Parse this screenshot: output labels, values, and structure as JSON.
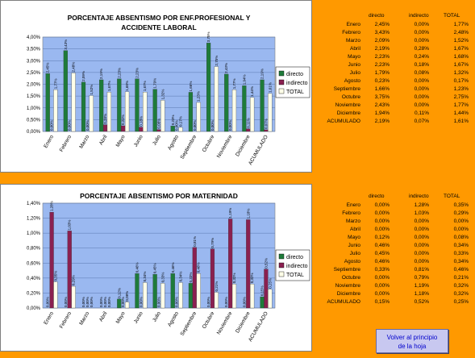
{
  "colors": {
    "directo": "#1e7b3a",
    "indirecto": "#8a2050",
    "total": "#ffffe8",
    "plot_bg": "#9ab8f0",
    "background": "#ff9900"
  },
  "chart_data": [
    {
      "type": "bar",
      "title": "PORCENTAJE ABSENTISMO POR ENF.PROFESIONAL Y ACCIDENTE LABORAL",
      "title_lines": [
        "PORCENTAJE ABSENTISMO POR ENF.PROFESIONAL Y",
        "ACCIDENTE LABORAL"
      ],
      "categories": [
        "Enero",
        "Febrero",
        "Marzo",
        "Abril",
        "Mayo",
        "Junio",
        "Julio",
        "Agosto",
        "Septiembre",
        "Octubre",
        "Noviembre",
        "Diciembre",
        "ACUMULADO"
      ],
      "series": [
        {
          "name": "directo",
          "values": [
            2.45,
            3.43,
            2.09,
            2.19,
            2.23,
            2.23,
            1.79,
            0.23,
            1.66,
            3.75,
            2.43,
            1.94,
            2.19
          ]
        },
        {
          "name": "indirecto",
          "values": [
            0.0,
            0.0,
            0.0,
            0.28,
            0.24,
            0.18,
            0.08,
            0.0,
            0.0,
            0.0,
            0.0,
            0.11,
            0.07
          ]
        },
        {
          "name": "TOTAL",
          "values": [
            1.77,
            2.48,
            1.52,
            1.67,
            1.68,
            1.67,
            1.32,
            0.17,
            1.23,
            2.75,
            1.77,
            1.44,
            1.61
          ]
        }
      ],
      "ylim": [
        0,
        4
      ],
      "yticks": [
        "0,00%",
        "0,50%",
        "1,00%",
        "1,50%",
        "2,00%",
        "2,50%",
        "3,00%",
        "3,50%",
        "4,00%"
      ],
      "legend_position": "right",
      "grid": true
    },
    {
      "type": "bar",
      "title": "PORCENTAJE ABSENTISMO POR MATERNIDAD",
      "title_lines": [
        "PORCENTAJE ABSENTISMO POR MATERNIDAD"
      ],
      "categories": [
        "Enero",
        "Febrero",
        "Marzo",
        "Abril",
        "Mayo",
        "Junio",
        "Julio",
        "Agosto",
        "Septiembre",
        "Octubre",
        "Noviembre",
        "Diciembre",
        "ACUMULADO"
      ],
      "series": [
        {
          "name": "directo",
          "values": [
            0.0,
            0.0,
            0.0,
            0.0,
            0.12,
            0.46,
            0.45,
            0.46,
            0.33,
            0.0,
            0.0,
            0.0,
            0.15
          ]
        },
        {
          "name": "indirecto",
          "values": [
            1.28,
            1.03,
            0.0,
            0.0,
            0.0,
            0.0,
            0.0,
            0.0,
            0.81,
            0.79,
            1.19,
            1.18,
            0.52
          ]
        },
        {
          "name": "TOTAL",
          "values": [
            0.35,
            0.29,
            0.0,
            0.0,
            0.08,
            0.34,
            0.33,
            0.34,
            0.46,
            0.21,
            0.32,
            0.32,
            0.25
          ]
        }
      ],
      "ylim": [
        0,
        1.4
      ],
      "yticks": [
        "0,00%",
        "0,20%",
        "0,40%",
        "0,60%",
        "0,80%",
        "1,00%",
        "1,20%",
        "1,40%"
      ],
      "legend_position": "right",
      "grid": true
    }
  ],
  "tables": [
    {
      "headers": [
        "directo",
        "indirecto",
        "TOTAL"
      ],
      "rows": [
        {
          "month": "Enero",
          "directo": "2,45%",
          "indirecto": "0,00%",
          "total": "1,77%"
        },
        {
          "month": "Febrero",
          "directo": "3,43%",
          "indirecto": "0,00%",
          "total": "2,48%"
        },
        {
          "month": "Marzo",
          "directo": "2,09%",
          "indirecto": "0,00%",
          "total": "1,52%"
        },
        {
          "month": "Abril",
          "directo": "2,19%",
          "indirecto": "0,28%",
          "total": "1,67%"
        },
        {
          "month": "Mayo",
          "directo": "2,23%",
          "indirecto": "0,24%",
          "total": "1,68%"
        },
        {
          "month": "Junio",
          "directo": "2,23%",
          "indirecto": "0,18%",
          "total": "1,67%"
        },
        {
          "month": "Julio",
          "directo": "1,79%",
          "indirecto": "0,08%",
          "total": "1,32%"
        },
        {
          "month": "Agosto",
          "directo": "0,23%",
          "indirecto": "0,00%",
          "total": "0,17%"
        },
        {
          "month": "Septiembre",
          "directo": "1,66%",
          "indirecto": "0,00%",
          "total": "1,23%"
        },
        {
          "month": "Octubre",
          "directo": "3,75%",
          "indirecto": "0,00%",
          "total": "2,75%"
        },
        {
          "month": "Noviembre",
          "directo": "2,43%",
          "indirecto": "0,00%",
          "total": "1,77%"
        },
        {
          "month": "Diciembre",
          "directo": "1,94%",
          "indirecto": "0,11%",
          "total": "1,44%"
        },
        {
          "month": "ACUMULADO",
          "directo": "2,19%",
          "indirecto": "0,07%",
          "total": "1,61%"
        }
      ]
    },
    {
      "headers": [
        "directo",
        "indirecto",
        "TOTAL"
      ],
      "rows": [
        {
          "month": "Enero",
          "directo": "0,00%",
          "indirecto": "1,28%",
          "total": "0,35%"
        },
        {
          "month": "Febrero",
          "directo": "0,00%",
          "indirecto": "1,03%",
          "total": "0,29%"
        },
        {
          "month": "Marzo",
          "directo": "0,00%",
          "indirecto": "0,00%",
          "total": "0,00%"
        },
        {
          "month": "Abril",
          "directo": "0,00%",
          "indirecto": "0,00%",
          "total": "0,00%"
        },
        {
          "month": "Mayo",
          "directo": "0,12%",
          "indirecto": "0,00%",
          "total": "0,08%"
        },
        {
          "month": "Junio",
          "directo": "0,46%",
          "indirecto": "0,00%",
          "total": "0,34%"
        },
        {
          "month": "Julio",
          "directo": "0,45%",
          "indirecto": "0,00%",
          "total": "0,33%"
        },
        {
          "month": "Agosto",
          "directo": "0,46%",
          "indirecto": "0,00%",
          "total": "0,34%"
        },
        {
          "month": "Septiembre",
          "directo": "0,33%",
          "indirecto": "0,81%",
          "total": "0,46%"
        },
        {
          "month": "Octubre",
          "directo": "0,00%",
          "indirecto": "0,79%",
          "total": "0,21%"
        },
        {
          "month": "Noviembre",
          "directo": "0,00%",
          "indirecto": "1,19%",
          "total": "0,32%"
        },
        {
          "month": "Diciembre",
          "directo": "0,00%",
          "indirecto": "1,18%",
          "total": "0,32%"
        },
        {
          "month": "ACUMULADO",
          "directo": "0,15%",
          "indirecto": "0,52%",
          "total": "0,25%"
        }
      ]
    }
  ],
  "button": {
    "line1": "Volver al principio",
    "line2": "de la hoja"
  }
}
